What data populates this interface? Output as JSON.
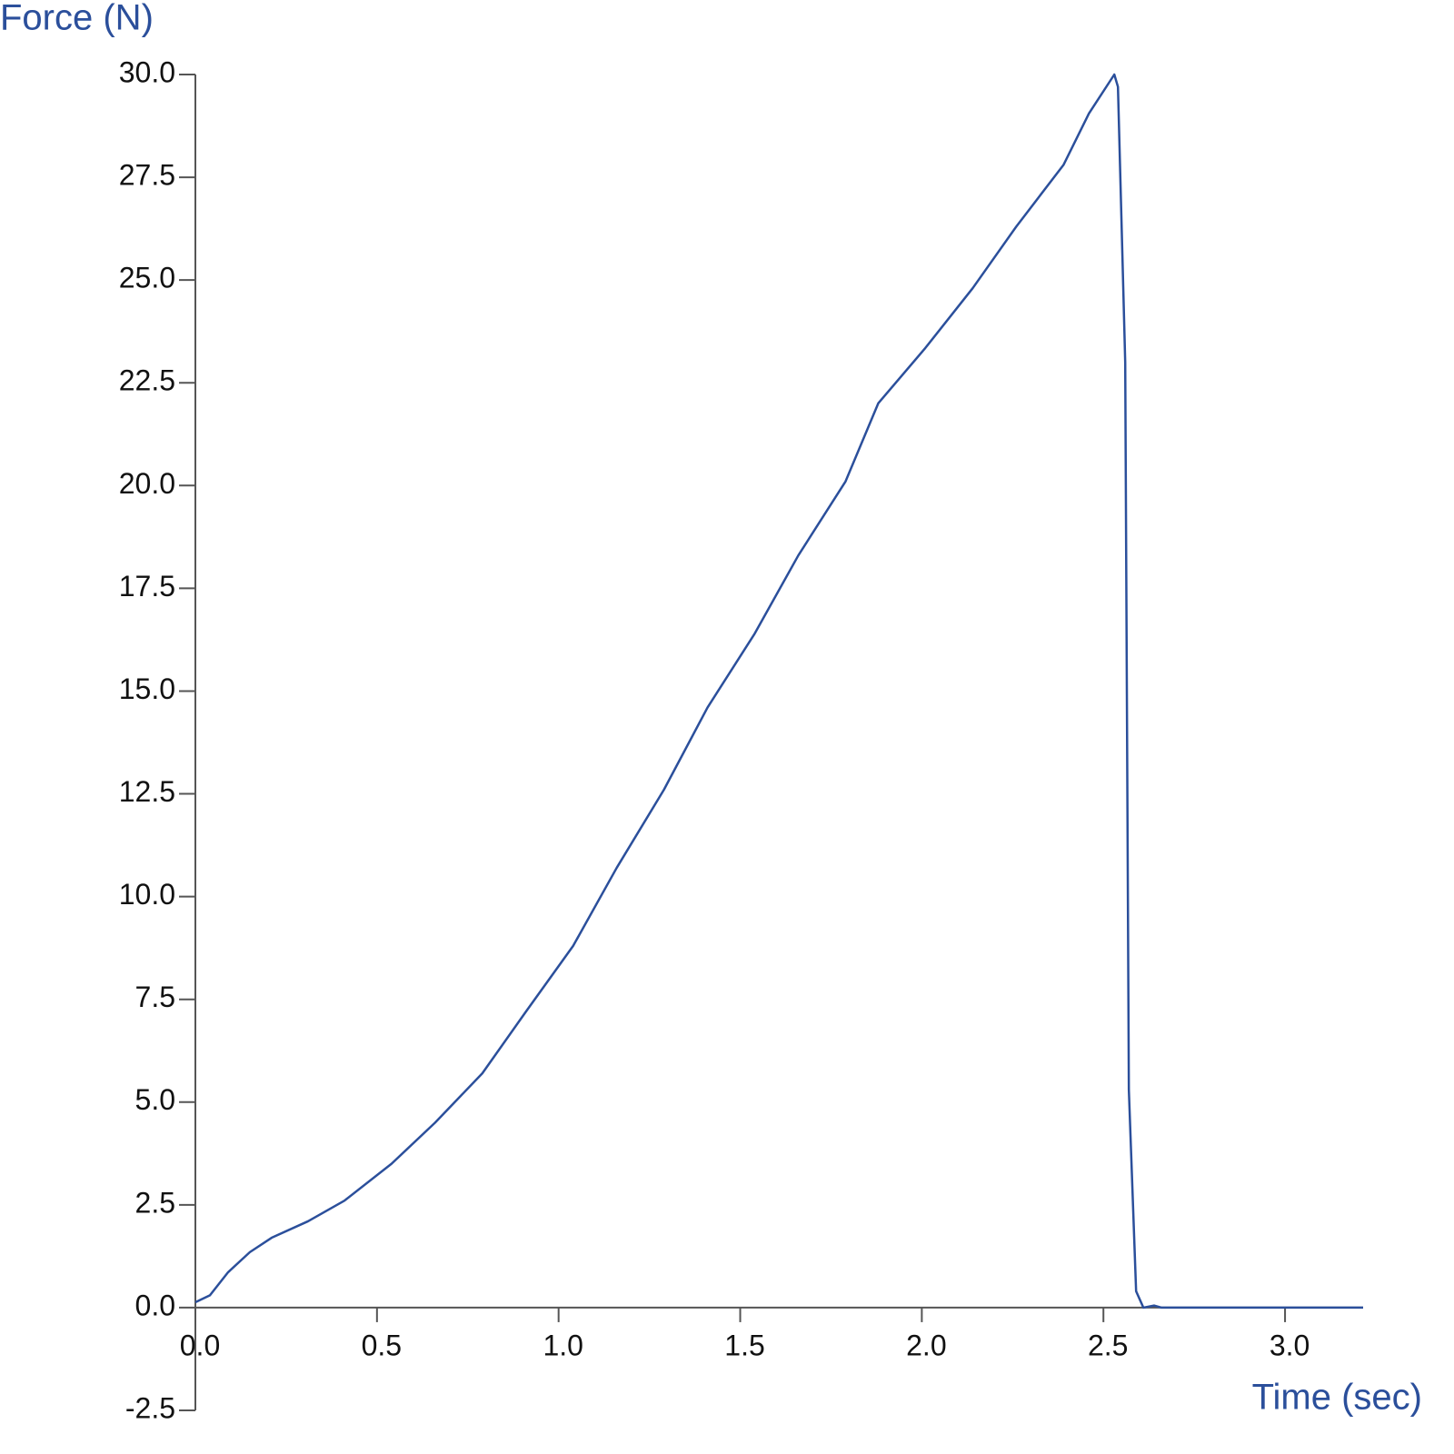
{
  "chart_data": {
    "type": "line",
    "y_label": "Force (N)",
    "x_label": "Time (sec)",
    "x": [
      0,
      0.04,
      0.09,
      0.15,
      0.21,
      0.31,
      0.41,
      0.54,
      0.66,
      0.79,
      0.91,
      1.04,
      1.16,
      1.29,
      1.41,
      1.54,
      1.66,
      1.79,
      1.88,
      2.01,
      2.14,
      2.26,
      2.39,
      2.46,
      2.53,
      2.54,
      2.56,
      2.57,
      2.59,
      2.61,
      2.64,
      2.66,
      3.215
    ],
    "series": [
      {
        "color": "#2b4f9b",
        "values": [
          0.13,
          0.3,
          0.86,
          1.35,
          1.7,
          2.1,
          2.6,
          3.5,
          4.5,
          5.7,
          7.2,
          8.8,
          10.7,
          12.6,
          14.6,
          16.4,
          18.3,
          20.1,
          22.0,
          23.35,
          24.8,
          26.3,
          27.8,
          29.05,
          30.0,
          29.7,
          23.0,
          5.3,
          0.4,
          0,
          0.05,
          0,
          0
        ]
      }
    ],
    "xlim": [
      0,
      3.215
    ],
    "ylim": [
      -2.5,
      30
    ],
    "xticks": [
      {
        "value": 0,
        "label": "0.0"
      },
      0.5,
      {
        "value": 1,
        "label": "1.0"
      },
      1.5,
      {
        "value": 2,
        "label": "2.0"
      },
      2.5,
      {
        "value": 3,
        "label": "3.0"
      }
    ],
    "yticks": [
      -2.5,
      {
        "value": 0,
        "label": "0.0"
      },
      2.5,
      {
        "value": 5,
        "label": "5.0"
      },
      7.5,
      {
        "value": 10,
        "label": "10.0"
      },
      12.5,
      {
        "value": 15,
        "label": "15.0"
      },
      17.5,
      {
        "value": 20,
        "label": "20.0"
      },
      22.5,
      {
        "value": 25,
        "label": "25.0"
      },
      27.5,
      {
        "value": 30,
        "label": "30.0"
      }
    ],
    "grid": false
  }
}
